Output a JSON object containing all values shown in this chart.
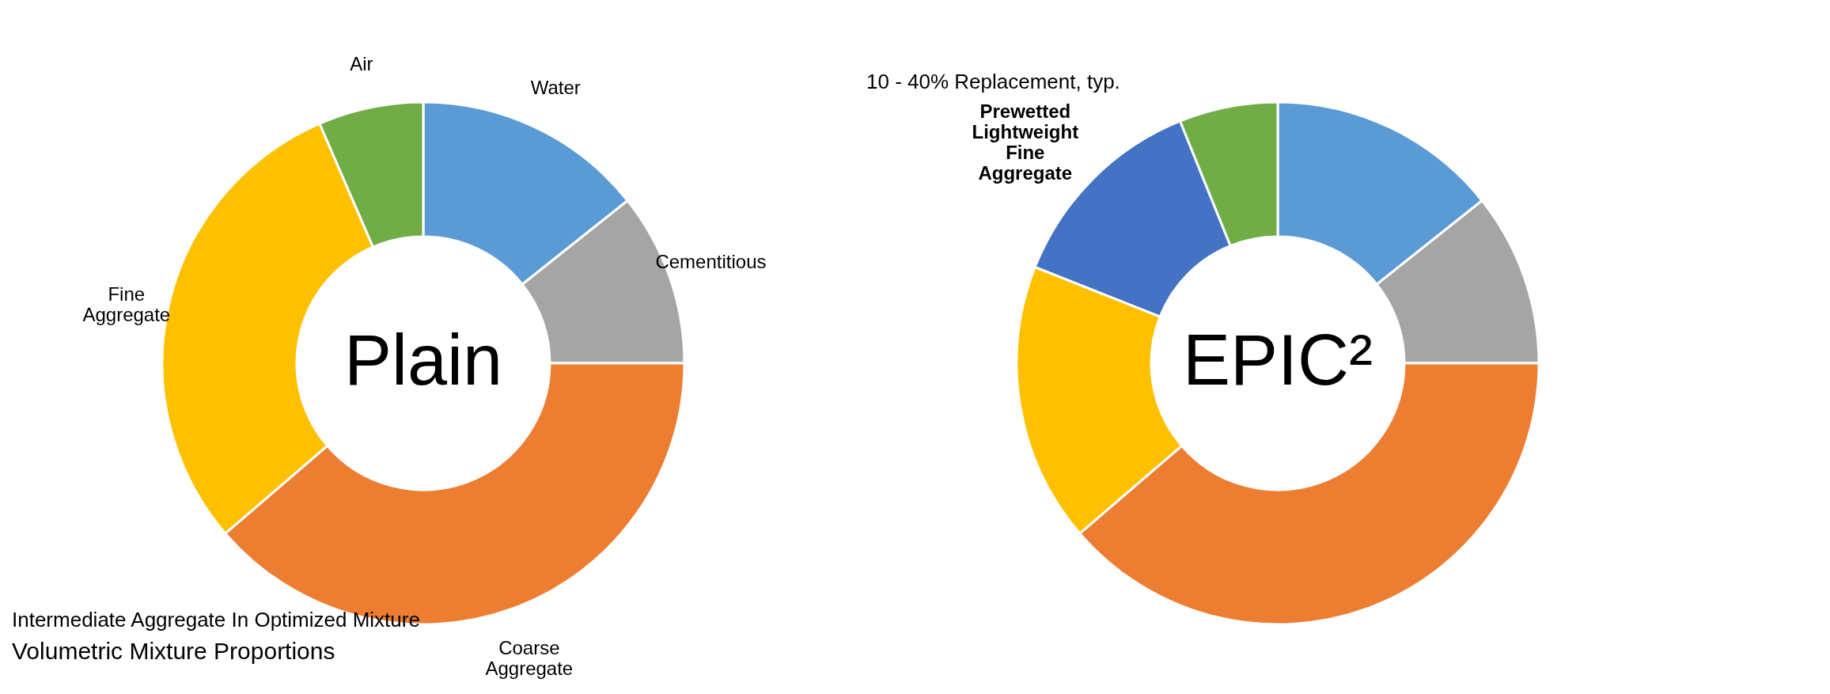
{
  "chart_data": [
    {
      "type": "donut",
      "title": "Plain",
      "categories": [
        "Water",
        "Cementitious",
        "Coarse Aggregate",
        "Fine Aggregate",
        "Air"
      ],
      "values": [
        14.3,
        10.7,
        38.7,
        29.8,
        6.5
      ],
      "colors": [
        "#5b9bd5",
        "#a5a5a5",
        "#ed7d31",
        "#ffc000",
        "#70ad47"
      ],
      "annotations": [
        "Intermediate Aggregate In Optimized Mixture",
        "Volumetric Mixture Proportions"
      ]
    },
    {
      "type": "donut",
      "title": "EPIC²",
      "categories": [
        null,
        null,
        null,
        null,
        "Prewetted Lightweight Fine Aggregate",
        null
      ],
      "values": [
        14.3,
        10.7,
        38.7,
        17.3,
        12.9,
        6.1
      ],
      "colors": [
        "#5b9bd5",
        "#a5a5a5",
        "#ed7d31",
        "#ffc000",
        "#4472c4",
        "#70ad47"
      ],
      "annotations": [
        "10 - 40% Replacement, typ."
      ]
    }
  ]
}
